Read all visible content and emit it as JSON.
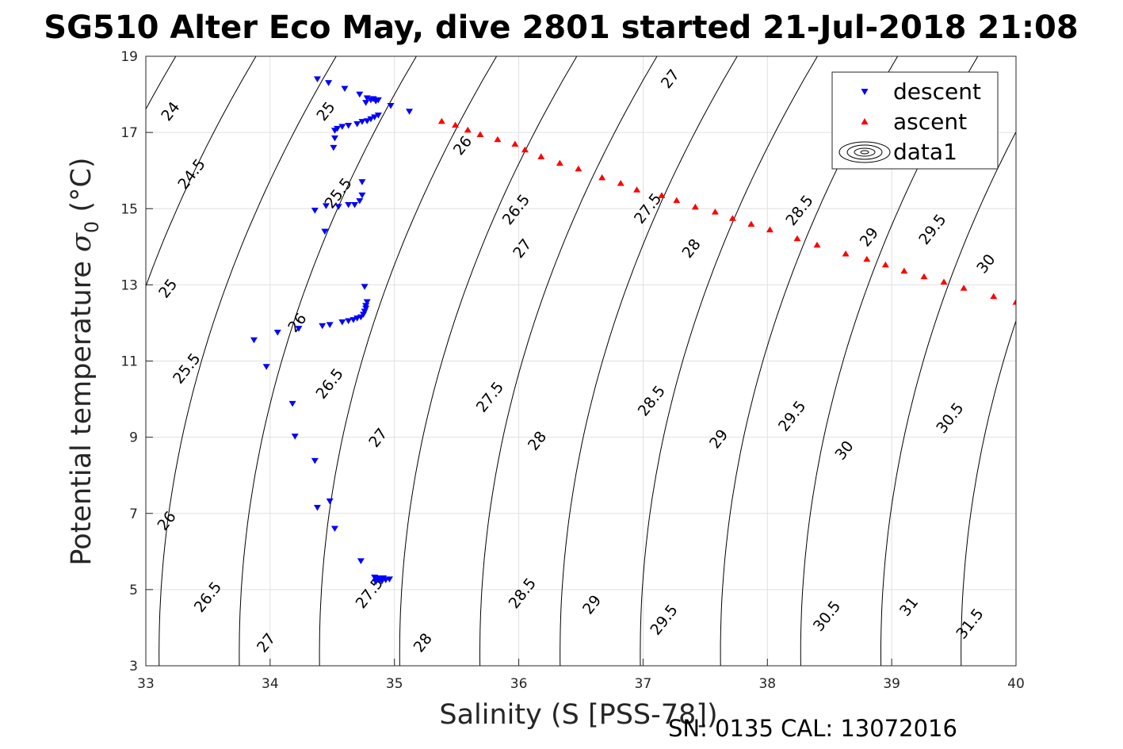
{
  "title": "SG510 Alter Eco May, dive 2801 started 21-Jul-2018 21:08",
  "footer": "SN: 0135  CAL: 13072016",
  "chart_data": {
    "type": "scatter",
    "title": "SG510 Alter Eco May, dive 2801 started 21-Jul-2018 21:08",
    "xlabel": "Salinity (S [PSS-78])",
    "ylabel_main": "Potential temperature ",
    "ylabel_sym": "σ",
    "ylabel_sub": "0",
    "ylabel_unit": " (°C)",
    "xlim": [
      33,
      40
    ],
    "ylim": [
      3,
      19
    ],
    "xticks": [
      33,
      34,
      35,
      36,
      37,
      38,
      39,
      40
    ],
    "yticks": [
      3,
      5,
      7,
      9,
      11,
      13,
      15,
      17,
      19
    ],
    "grid": true,
    "legend_position": "top-right",
    "legend": [
      "descent",
      "ascent",
      "data1"
    ],
    "colors": {
      "descent": "#0000ff",
      "ascent": "#ff0000",
      "contour": "#000000",
      "grid": "#e0e0e0"
    },
    "contour_levels": [
      24,
      24.5,
      25,
      25.5,
      26,
      26.5,
      27,
      27.5,
      28,
      28.5,
      29,
      29.5,
      30,
      30.5,
      31,
      31.5
    ],
    "contour_labels": [
      {
        "x": 33.2,
        "y": 17.55,
        "text": "24"
      },
      {
        "x": 33.37,
        "y": 15.9,
        "text": "24.5"
      },
      {
        "x": 34.45,
        "y": 17.55,
        "text": "25"
      },
      {
        "x": 33.18,
        "y": 12.9,
        "text": "25"
      },
      {
        "x": 34.55,
        "y": 15.4,
        "text": "25.5"
      },
      {
        "x": 33.33,
        "y": 10.8,
        "text": "25.5"
      },
      {
        "x": 35.55,
        "y": 16.65,
        "text": "26"
      },
      {
        "x": 34.22,
        "y": 12.0,
        "text": "26"
      },
      {
        "x": 33.17,
        "y": 6.8,
        "text": "26"
      },
      {
        "x": 35.98,
        "y": 14.97,
        "text": "26.5"
      },
      {
        "x": 34.48,
        "y": 10.4,
        "text": "26.5"
      },
      {
        "x": 33.5,
        "y": 4.8,
        "text": "26.5"
      },
      {
        "x": 37.22,
        "y": 18.4,
        "text": "27"
      },
      {
        "x": 36.03,
        "y": 13.95,
        "text": "27"
      },
      {
        "x": 34.87,
        "y": 8.98,
        "text": "27"
      },
      {
        "x": 33.97,
        "y": 3.6,
        "text": "27"
      },
      {
        "x": 37.04,
        "y": 15.0,
        "text": "27.5"
      },
      {
        "x": 35.77,
        "y": 10.05,
        "text": "27.5"
      },
      {
        "x": 34.8,
        "y": 4.9,
        "text": "27.5"
      },
      {
        "x": 37.39,
        "y": 13.95,
        "text": "28"
      },
      {
        "x": 36.15,
        "y": 8.9,
        "text": "28"
      },
      {
        "x": 35.23,
        "y": 3.6,
        "text": "28"
      },
      {
        "x": 38.26,
        "y": 14.95,
        "text": "28.5"
      },
      {
        "x": 37.07,
        "y": 9.95,
        "text": "28.5"
      },
      {
        "x": 36.03,
        "y": 4.9,
        "text": "28.5"
      },
      {
        "x": 38.82,
        "y": 14.25,
        "text": "29"
      },
      {
        "x": 37.61,
        "y": 8.95,
        "text": "29"
      },
      {
        "x": 36.59,
        "y": 4.6,
        "text": "29"
      },
      {
        "x": 39.33,
        "y": 14.45,
        "text": "29.5"
      },
      {
        "x": 38.2,
        "y": 9.55,
        "text": "29.5"
      },
      {
        "x": 37.17,
        "y": 4.2,
        "text": "29.5"
      },
      {
        "x": 39.76,
        "y": 13.55,
        "text": "30"
      },
      {
        "x": 38.62,
        "y": 8.65,
        "text": "30"
      },
      {
        "x": 39.47,
        "y": 9.5,
        "text": "30.5"
      },
      {
        "x": 38.48,
        "y": 4.3,
        "text": "30.5"
      },
      {
        "x": 39.14,
        "y": 4.55,
        "text": "31"
      },
      {
        "x": 39.63,
        "y": 4.1,
        "text": "31.5"
      }
    ],
    "series": [
      {
        "name": "descent",
        "marker": "down-triangle",
        "points": [
          [
            34.38,
            18.4
          ],
          [
            34.47,
            18.3
          ],
          [
            34.6,
            18.15
          ],
          [
            34.72,
            18.0
          ],
          [
            34.78,
            17.9
          ],
          [
            34.81,
            17.85
          ],
          [
            34.87,
            17.85
          ],
          [
            34.83,
            17.88
          ],
          [
            34.85,
            17.82
          ],
          [
            34.77,
            17.78
          ],
          [
            34.97,
            17.7
          ],
          [
            35.12,
            17.55
          ],
          [
            34.87,
            17.45
          ],
          [
            34.84,
            17.4
          ],
          [
            34.81,
            17.35
          ],
          [
            34.78,
            17.3
          ],
          [
            34.74,
            17.28
          ],
          [
            34.7,
            17.22
          ],
          [
            34.63,
            17.18
          ],
          [
            34.58,
            17.15
          ],
          [
            34.54,
            17.1
          ],
          [
            34.52,
            17.05
          ],
          [
            34.52,
            16.85
          ],
          [
            34.51,
            16.6
          ],
          [
            34.74,
            15.7
          ],
          [
            34.74,
            15.35
          ],
          [
            34.72,
            15.2
          ],
          [
            34.68,
            15.1
          ],
          [
            34.63,
            15.1
          ],
          [
            34.55,
            15.05
          ],
          [
            34.45,
            15.07
          ],
          [
            34.36,
            14.95
          ],
          [
            34.44,
            14.4
          ],
          [
            34.76,
            12.95
          ],
          [
            34.78,
            12.55
          ],
          [
            34.77,
            12.45
          ],
          [
            34.77,
            12.38
          ],
          [
            34.76,
            12.3
          ],
          [
            34.75,
            12.22
          ],
          [
            34.73,
            12.15
          ],
          [
            34.7,
            12.12
          ],
          [
            34.67,
            12.08
          ],
          [
            34.63,
            12.05
          ],
          [
            34.58,
            12.02
          ],
          [
            34.48,
            11.95
          ],
          [
            34.42,
            11.92
          ],
          [
            34.23,
            11.85
          ],
          [
            34.06,
            11.75
          ],
          [
            33.87,
            11.55
          ],
          [
            33.97,
            10.85
          ],
          [
            34.18,
            9.88
          ],
          [
            34.2,
            9.02
          ],
          [
            34.36,
            8.38
          ],
          [
            34.48,
            7.32
          ],
          [
            34.38,
            7.15
          ],
          [
            34.52,
            6.6
          ],
          [
            34.73,
            5.75
          ],
          [
            34.84,
            5.32
          ],
          [
            34.86,
            5.28
          ],
          [
            34.88,
            5.25
          ],
          [
            34.9,
            5.22
          ],
          [
            34.93,
            5.25
          ],
          [
            34.96,
            5.27
          ],
          [
            34.85,
            5.2
          ],
          [
            34.87,
            5.3
          ],
          [
            34.91,
            5.3
          ]
        ]
      },
      {
        "name": "ascent",
        "marker": "up-triangle",
        "points": [
          [
            35.38,
            17.3
          ],
          [
            35.49,
            17.2
          ],
          [
            35.59,
            17.07
          ],
          [
            35.69,
            16.95
          ],
          [
            35.83,
            16.82
          ],
          [
            35.97,
            16.7
          ],
          [
            36.05,
            16.55
          ],
          [
            36.18,
            16.37
          ],
          [
            36.33,
            16.2
          ],
          [
            36.48,
            16.05
          ],
          [
            36.67,
            15.82
          ],
          [
            36.82,
            15.67
          ],
          [
            36.95,
            15.5
          ],
          [
            37.15,
            15.35
          ],
          [
            37.27,
            15.22
          ],
          [
            37.42,
            15.05
          ],
          [
            37.58,
            14.92
          ],
          [
            37.72,
            14.75
          ],
          [
            37.87,
            14.6
          ],
          [
            38.02,
            14.45
          ],
          [
            38.24,
            14.22
          ],
          [
            38.4,
            14.05
          ],
          [
            38.63,
            13.82
          ],
          [
            38.8,
            13.68
          ],
          [
            38.95,
            13.53
          ],
          [
            39.1,
            13.37
          ],
          [
            39.26,
            13.22
          ],
          [
            39.42,
            13.08
          ],
          [
            39.58,
            12.92
          ],
          [
            39.82,
            12.7
          ],
          [
            40.0,
            12.55
          ]
        ]
      }
    ]
  }
}
